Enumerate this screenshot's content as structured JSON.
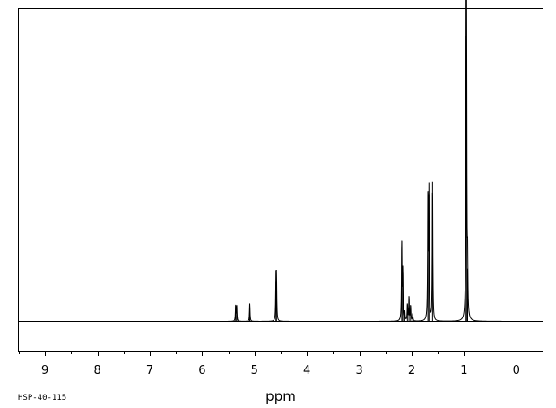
{
  "chart_data": {
    "type": "line",
    "title": "",
    "sample_id": "HSP-40-115",
    "xlabel": "ppm",
    "ylabel": "",
    "xlim": [
      9.5,
      -0.5
    ],
    "x_reversed": true,
    "ylim": [
      -0.1,
      1.0
    ],
    "grid": false,
    "legend": "none",
    "major_ticks": [
      9,
      8,
      7,
      6,
      5,
      4,
      3,
      2,
      1,
      0
    ],
    "tick_labels": [
      "9",
      "8",
      "7",
      "6",
      "5",
      "4",
      "3",
      "2",
      "1",
      "0"
    ],
    "minor_tick_step": 0.5,
    "peaks": [
      {
        "ppm": 5.36,
        "height": 0.05
      },
      {
        "ppm": 5.34,
        "height": 0.05
      },
      {
        "ppm": 5.09,
        "height": 0.058
      },
      {
        "ppm": 4.59,
        "height": 0.13
      },
      {
        "ppm": 4.58,
        "height": 0.13
      },
      {
        "ppm": 2.19,
        "height": 0.26
      },
      {
        "ppm": 2.17,
        "height": 0.16
      },
      {
        "ppm": 2.13,
        "height": 0.03
      },
      {
        "ppm": 2.08,
        "height": 0.055
      },
      {
        "ppm": 2.05,
        "height": 0.08
      },
      {
        "ppm": 2.02,
        "height": 0.05
      },
      {
        "ppm": 1.98,
        "height": 0.025
      },
      {
        "ppm": 1.69,
        "height": 0.42
      },
      {
        "ppm": 1.67,
        "height": 0.41
      },
      {
        "ppm": 1.6,
        "height": 0.45
      },
      {
        "ppm": 0.96,
        "height": 0.92
      },
      {
        "ppm": 0.95,
        "height": 0.86
      },
      {
        "ppm": 0.93,
        "height": 0.17
      }
    ]
  }
}
